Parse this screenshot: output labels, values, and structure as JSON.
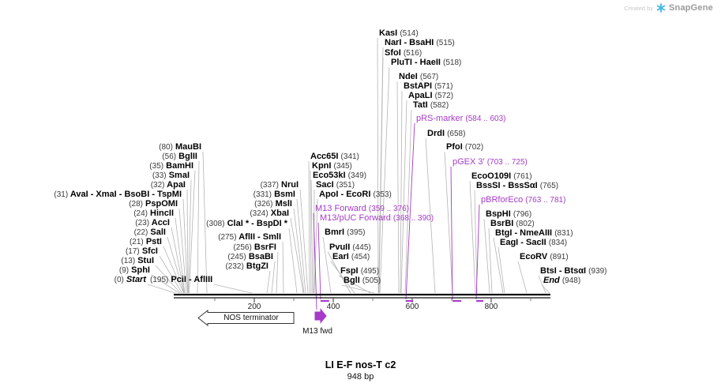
{
  "watermark": {
    "prefix": "Created by",
    "brand": "SnapGene"
  },
  "map": {
    "title": "LI E-F nos-T c2",
    "length_label": "948 bp",
    "axis_ticks": [
      "200",
      "400",
      "600",
      "800"
    ],
    "features": {
      "nos_terminator": "NOS terminator",
      "m13_fwd": "M13 fwd"
    },
    "colors": {
      "primer_purple": "#A63AC9",
      "enzyme_black": "#000000",
      "connector_gray": "#b4b4b4"
    }
  },
  "labels": [
    {
      "pos": "(80)",
      "name": "MauBI"
    },
    {
      "pos": "(56)",
      "name": "BglII"
    },
    {
      "pos": "(35)",
      "name": "BamHI"
    },
    {
      "pos": "(33)",
      "name": "SmaI"
    },
    {
      "pos": "(32)",
      "name": "ApaI"
    },
    {
      "pos": "(31)",
      "name": "AvaI - XmaI - BsoBI - TspMI"
    },
    {
      "pos": "(28)",
      "name": "PspOMI"
    },
    {
      "pos": "(24)",
      "name": "HincII"
    },
    {
      "pos": "(23)",
      "name": "AccI"
    },
    {
      "pos": "(22)",
      "name": "SalI"
    },
    {
      "pos": "(21)",
      "name": "PstI"
    },
    {
      "pos": "(17)",
      "name": "SfcI"
    },
    {
      "pos": "(13)",
      "name": "StuI"
    },
    {
      "pos": "(9)",
      "name": "SphI"
    },
    {
      "pos": "(0)",
      "name": "Start"
    },
    {
      "pos": "(195)",
      "name": "PciI - AflIII"
    },
    {
      "pos": "(308)",
      "name": "ClaI * - BspDI *"
    },
    {
      "pos": "(275)",
      "name": "AflII - SmlI"
    },
    {
      "pos": "(256)",
      "name": "BsrFI"
    },
    {
      "pos": "(245)",
      "name": "BsaBI"
    },
    {
      "pos": "(232)",
      "name": "BtgZI"
    },
    {
      "pos": "(337)",
      "name": "NruI"
    },
    {
      "pos": "(331)",
      "name": "BsmI"
    },
    {
      "pos": "(326)",
      "name": "MslI"
    },
    {
      "pos": "(324)",
      "name": "XbaI"
    },
    {
      "name": "Acc65I",
      "pos": "(341)"
    },
    {
      "name": "KpnI",
      "pos": "(345)"
    },
    {
      "name": "Eco53kI",
      "pos": "(349)"
    },
    {
      "name": "SacI",
      "pos": "(351)"
    },
    {
      "name": "ApoI - EcoRI",
      "pos": "(353)"
    },
    {
      "name": "M13 Forward",
      "pos": "(359 .. 376)"
    },
    {
      "name": "M13/pUC Forward",
      "pos": "(368 .. 390)"
    },
    {
      "name": "BmrI",
      "pos": "(395)"
    },
    {
      "name": "PvuII",
      "pos": "(445)"
    },
    {
      "name": "EarI",
      "pos": "(454)"
    },
    {
      "name": "FspI",
      "pos": "(495)"
    },
    {
      "name": "BglI",
      "pos": "(505)"
    },
    {
      "name": "KasI",
      "pos": "(514)"
    },
    {
      "name": "NarI - BsaHI",
      "pos": "(515)"
    },
    {
      "name": "SfoI",
      "pos": "(516)"
    },
    {
      "name": "PluTI - HaeII",
      "pos": "(518)"
    },
    {
      "name": "NdeI",
      "pos": "(567)"
    },
    {
      "name": "BstAPI",
      "pos": "(571)"
    },
    {
      "name": "ApaLI",
      "pos": "(572)"
    },
    {
      "name": "TatI",
      "pos": "(582)"
    },
    {
      "name": "pRS-marker",
      "pos": "(584 .. 603)"
    },
    {
      "name": "DrdI",
      "pos": "(658)"
    },
    {
      "name": "PfoI",
      "pos": "(702)"
    },
    {
      "name": "pGEX 3'",
      "pos": "(703 .. 725)"
    },
    {
      "name": "EcoO109I",
      "pos": "(761)"
    },
    {
      "name": "BssSI - BssSαI",
      "pos": "(765)"
    },
    {
      "name": "pBRforEco",
      "pos": "(763 .. 781)"
    },
    {
      "name": "BspHI",
      "pos": "(796)"
    },
    {
      "name": "BsrBI",
      "pos": "(802)"
    },
    {
      "name": "BtgI - NmeAIII",
      "pos": "(831)"
    },
    {
      "name": "EagI - SacII",
      "pos": "(834)"
    },
    {
      "name": "EcoRV",
      "pos": "(891)"
    },
    {
      "name": "BtsI - BtsαI",
      "pos": "(939)"
    },
    {
      "name": "End",
      "pos": "(948)"
    }
  ]
}
